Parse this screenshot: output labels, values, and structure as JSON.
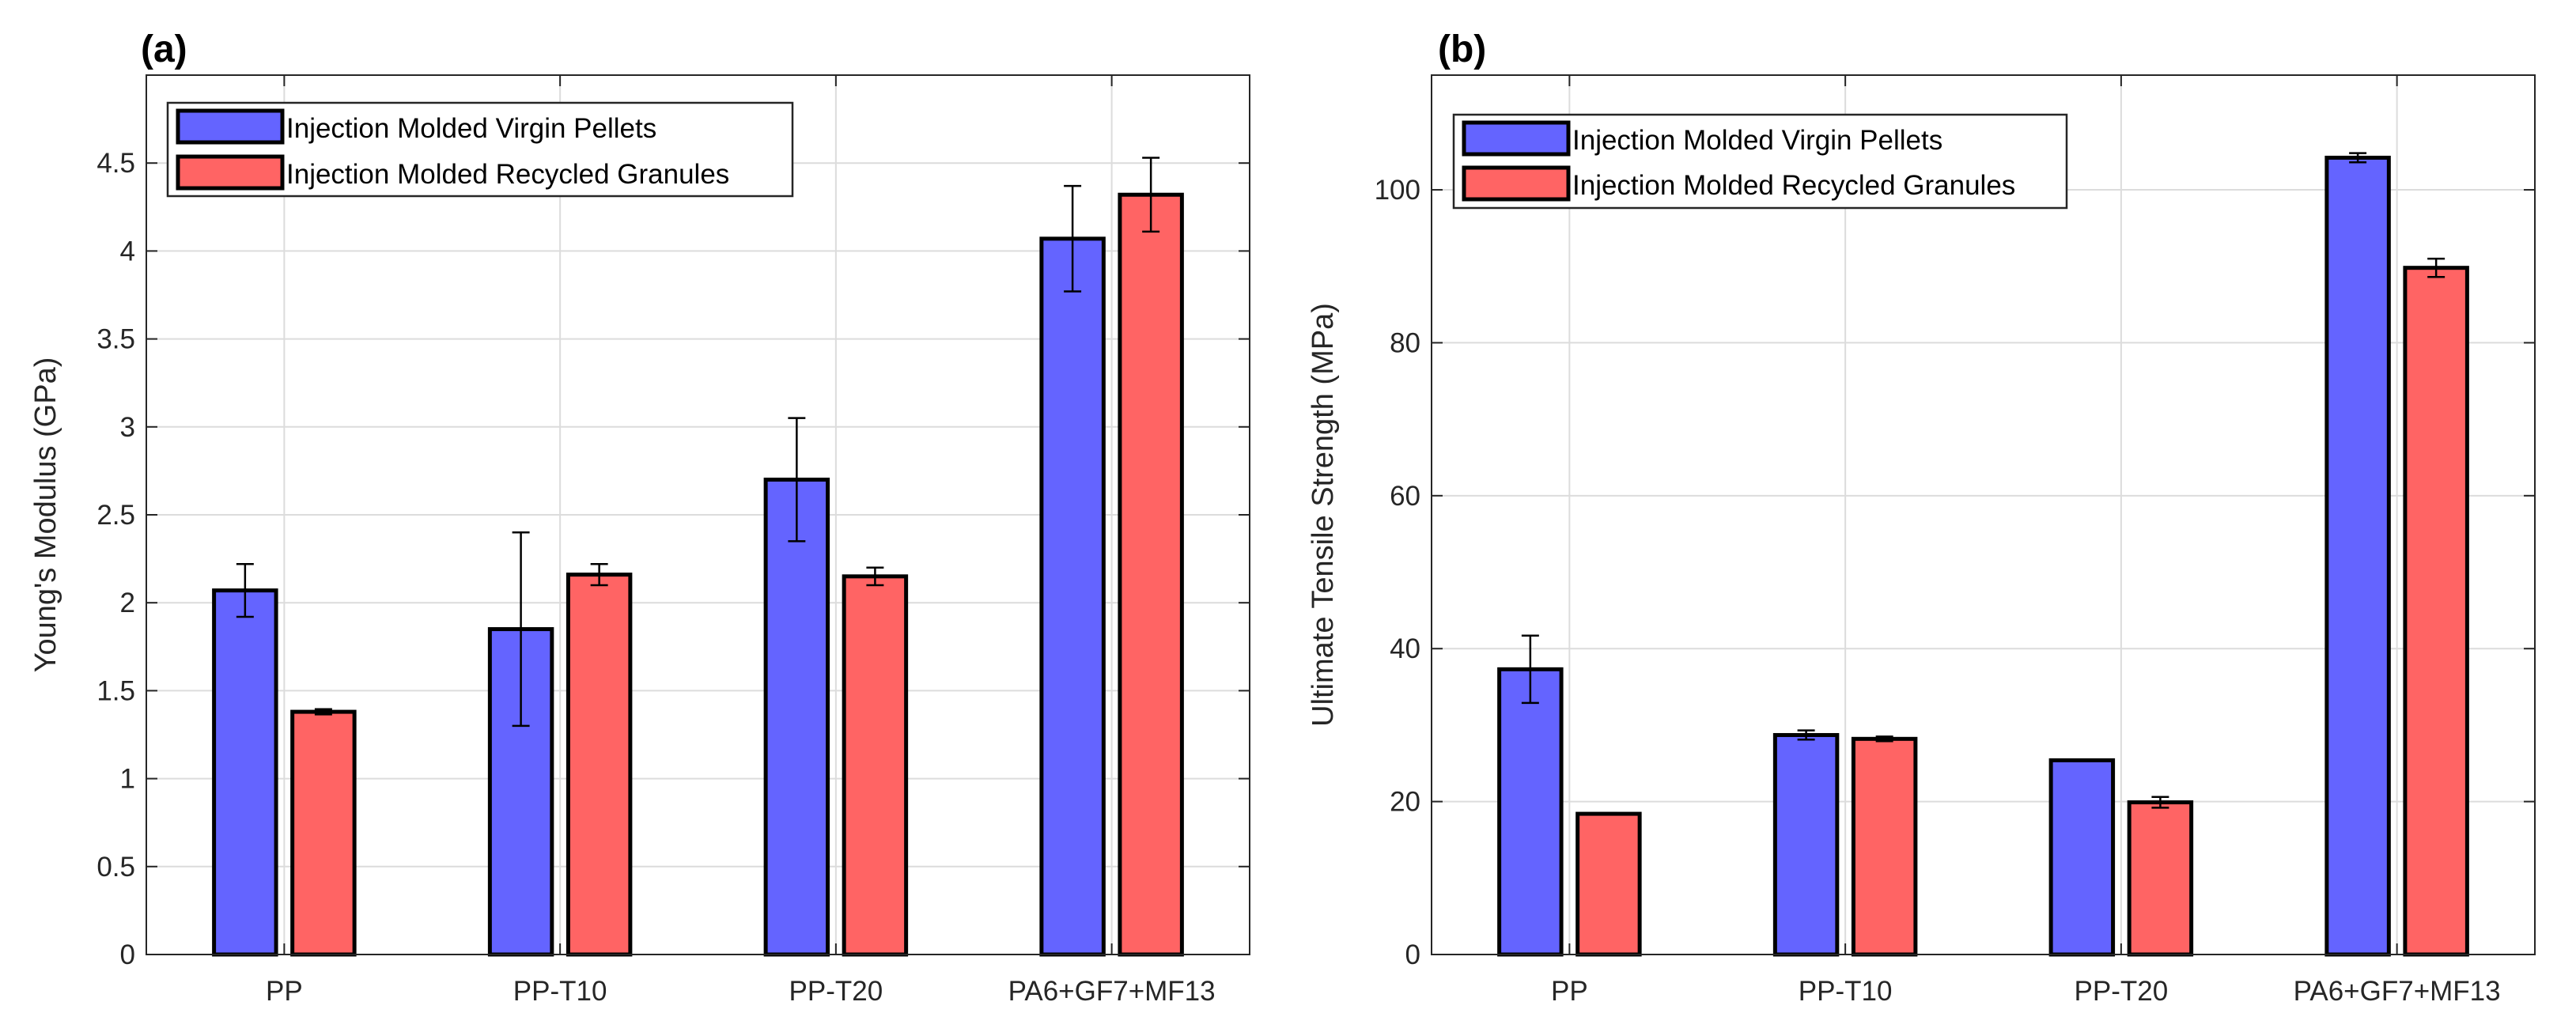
{
  "figure": {
    "panels": [
      {
        "label": "(a)"
      },
      {
        "label": "(b)"
      }
    ]
  },
  "chart_data": [
    {
      "type": "bar",
      "panel": "(a)",
      "title": "",
      "xlabel": "",
      "ylabel": "Young's Modulus (GPa)",
      "categories": [
        "PP",
        "PP-T10",
        "PP-T20",
        "PA6+GF7+MF13"
      ],
      "ylim": [
        0,
        5
      ],
      "yticks": [
        0,
        0.5,
        1,
        1.5,
        2,
        2.5,
        3,
        3.5,
        4,
        4.5
      ],
      "ytick_labels": [
        "0",
        "0.5",
        "1",
        "1.5",
        "2",
        "2.5",
        "3",
        "3.5",
        "4",
        "4.5"
      ],
      "grid": true,
      "legend_position": "top-left",
      "series": [
        {
          "name": "Injection Molded Virgin Pellets",
          "color": "#6464ff",
          "values": [
            2.07,
            1.85,
            2.7,
            4.07
          ],
          "errors": [
            0.15,
            0.55,
            0.35,
            0.3
          ]
        },
        {
          "name": "Injection Molded Recycled Granules",
          "color": "#ff6464",
          "values": [
            1.38,
            2.16,
            2.15,
            4.32
          ],
          "errors": [
            0.015,
            0.06,
            0.05,
            0.21
          ]
        }
      ]
    },
    {
      "type": "bar",
      "panel": "(b)",
      "title": "",
      "xlabel": "",
      "ylabel": "Ultimate Tensile Strength (MPa)",
      "categories": [
        "PP",
        "PP-T10",
        "PP-T20",
        "PA6+GF7+MF13"
      ],
      "ylim": [
        0,
        115
      ],
      "yticks": [
        0,
        20,
        40,
        60,
        80,
        100
      ],
      "ytick_labels": [
        "0",
        "20",
        "40",
        "60",
        "80",
        "100"
      ],
      "grid": true,
      "legend_position": "top-left",
      "series": [
        {
          "name": "Injection Molded Virgin Pellets",
          "color": "#6464ff",
          "values": [
            37.3,
            28.7,
            25.4,
            104.2
          ],
          "errors": [
            4.4,
            0.6,
            0.1,
            0.6
          ]
        },
        {
          "name": "Injection Molded Recycled Granules",
          "color": "#ff6464",
          "values": [
            18.4,
            28.2,
            19.9,
            89.8
          ],
          "errors": [
            0.1,
            0.3,
            0.7,
            1.2
          ]
        }
      ]
    }
  ]
}
